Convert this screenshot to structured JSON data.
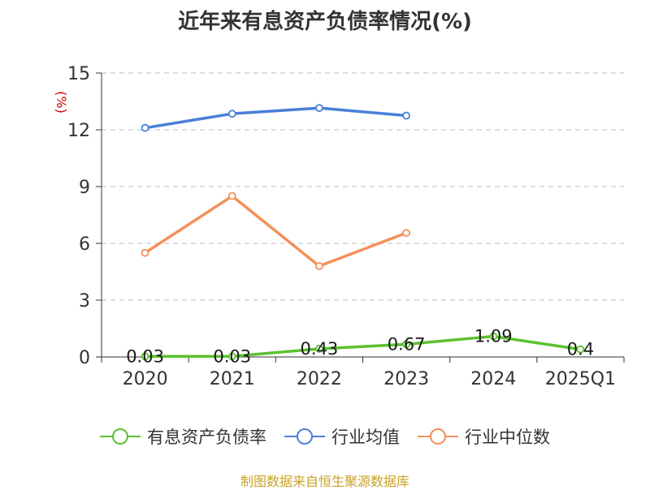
{
  "chart_data": {
    "type": "line",
    "title": "近年来有息资产负债率情况(%)",
    "ylabel": "(%)",
    "xlabel": "",
    "categories": [
      "2020",
      "2021",
      "2022",
      "2023",
      "2024",
      "2025Q1"
    ],
    "ylim": [
      0,
      15
    ],
    "yticks": [
      0,
      3,
      6,
      9,
      12,
      15
    ],
    "grid": true,
    "legend_position": "bottom",
    "series": [
      {
        "name": "有息资产负债率",
        "color": "#5cc12f",
        "values": [
          0.03,
          0.03,
          0.43,
          0.67,
          1.09,
          0.4
        ],
        "data_labels": [
          "0.03",
          "0.03",
          "0.43",
          "0.67",
          "1.09",
          "0.4"
        ]
      },
      {
        "name": "行业均值",
        "color": "#4a7fd8",
        "values": [
          12.1,
          12.85,
          13.15,
          12.75,
          null,
          null
        ]
      },
      {
        "name": "行业中位数",
        "color": "#f4905a",
        "values": [
          5.5,
          8.5,
          4.8,
          6.55,
          null,
          null
        ]
      }
    ]
  },
  "source": "制图数据来自恒生聚源数据库",
  "colors": {
    "ylabel": "#cc0000",
    "axis": "#333333",
    "grid": "#bbbbbb"
  }
}
